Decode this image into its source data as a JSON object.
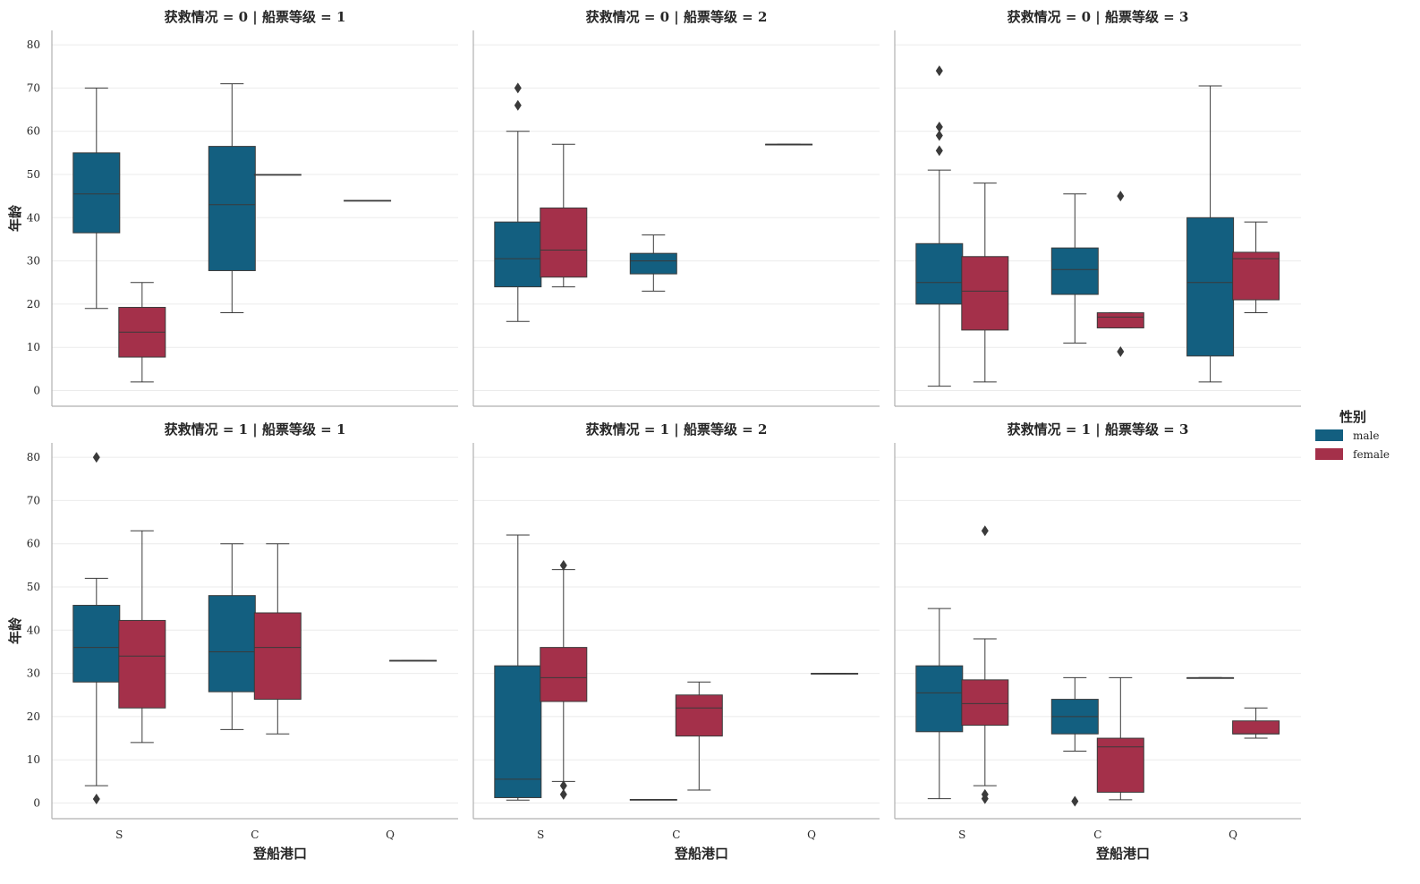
{
  "chart_data": {
    "type": "box",
    "xlabel": "登船港口",
    "ylabel": "年龄",
    "categories": [
      "S",
      "C",
      "Q"
    ],
    "yticks": [
      0,
      10,
      20,
      30,
      40,
      50,
      60,
      70,
      80
    ],
    "ylim": [
      -4,
      84
    ],
    "grid": true,
    "legend": {
      "title": "性别",
      "position": "right",
      "entries": [
        {
          "name": "male",
          "color": "#135f80"
        },
        {
          "name": "female",
          "color": "#a4304a"
        }
      ]
    },
    "colors": {
      "male": "#135f80",
      "female": "#a4304a"
    },
    "panels": [
      {
        "title": "获救情况 = 0 | 船票等级 = 1",
        "boxes": [
          {
            "cat": "S",
            "hue": "male",
            "q1": 36.5,
            "median": 45.5,
            "q3": 55,
            "lo": 19,
            "hi": 70,
            "fliers": []
          },
          {
            "cat": "S",
            "hue": "female",
            "q1": 7.75,
            "median": 13.5,
            "q3": 19.25,
            "lo": 2,
            "hi": 25,
            "fliers": []
          },
          {
            "cat": "C",
            "hue": "male",
            "q1": 27.75,
            "median": 43,
            "q3": 56.5,
            "lo": 18,
            "hi": 71,
            "fliers": []
          },
          {
            "cat": "C",
            "hue": "female",
            "q1": 50,
            "median": 50,
            "q3": 50,
            "lo": 50,
            "hi": 50,
            "fliers": []
          },
          {
            "cat": "Q",
            "hue": "male",
            "q1": 44,
            "median": 44,
            "q3": 44,
            "lo": 44,
            "hi": 44,
            "fliers": []
          }
        ]
      },
      {
        "title": "获救情况 = 0 | 船票等级 = 2",
        "boxes": [
          {
            "cat": "S",
            "hue": "male",
            "q1": 24,
            "median": 30.5,
            "q3": 39,
            "lo": 16,
            "hi": 60,
            "fliers": [
              66,
              70
            ]
          },
          {
            "cat": "S",
            "hue": "female",
            "q1": 26.25,
            "median": 32.5,
            "q3": 42.25,
            "lo": 24,
            "hi": 57,
            "fliers": []
          },
          {
            "cat": "C",
            "hue": "male",
            "q1": 27,
            "median": 30,
            "q3": 31.75,
            "lo": 23,
            "hi": 36,
            "fliers": []
          },
          {
            "cat": "Q",
            "hue": "male",
            "q1": 57,
            "median": 57,
            "q3": 57,
            "lo": 57,
            "hi": 57,
            "fliers": []
          }
        ]
      },
      {
        "title": "获救情况 = 0 | 船票等级 = 3",
        "boxes": [
          {
            "cat": "S",
            "hue": "male",
            "q1": 20,
            "median": 25,
            "q3": 34,
            "lo": 1,
            "hi": 51,
            "fliers": [
              55.5,
              59,
              61,
              74
            ]
          },
          {
            "cat": "S",
            "hue": "female",
            "q1": 14,
            "median": 23,
            "q3": 31,
            "lo": 2,
            "hi": 48,
            "fliers": []
          },
          {
            "cat": "C",
            "hue": "male",
            "q1": 22.25,
            "median": 28,
            "q3": 33,
            "lo": 11,
            "hi": 45.5,
            "fliers": []
          },
          {
            "cat": "C",
            "hue": "female",
            "q1": 14.5,
            "median": 17,
            "q3": 18,
            "lo": 14.5,
            "hi": 18,
            "fliers": [
              9,
              45
            ]
          },
          {
            "cat": "Q",
            "hue": "male",
            "q1": 8,
            "median": 25,
            "q3": 40,
            "lo": 2,
            "hi": 70.5,
            "fliers": []
          },
          {
            "cat": "Q",
            "hue": "female",
            "q1": 21,
            "median": 30.5,
            "q3": 32,
            "lo": 18,
            "hi": 39,
            "fliers": []
          }
        ]
      },
      {
        "title": "获救情况 = 1 | 船票等级 = 1",
        "boxes": [
          {
            "cat": "S",
            "hue": "male",
            "q1": 28,
            "median": 36,
            "q3": 45.75,
            "lo": 4,
            "hi": 52,
            "fliers": [
              0.92,
              80
            ]
          },
          {
            "cat": "S",
            "hue": "female",
            "q1": 22,
            "median": 34,
            "q3": 42.25,
            "lo": 14,
            "hi": 63,
            "fliers": []
          },
          {
            "cat": "C",
            "hue": "male",
            "q1": 25.75,
            "median": 35,
            "q3": 48,
            "lo": 17,
            "hi": 60,
            "fliers": []
          },
          {
            "cat": "C",
            "hue": "female",
            "q1": 24,
            "median": 36,
            "q3": 44,
            "lo": 16,
            "hi": 60,
            "fliers": []
          },
          {
            "cat": "Q",
            "hue": "female",
            "q1": 33,
            "median": 33,
            "q3": 33,
            "lo": 33,
            "hi": 33,
            "fliers": []
          }
        ]
      },
      {
        "title": "获救情况 = 1 | 船票等级 = 2",
        "boxes": [
          {
            "cat": "S",
            "hue": "male",
            "q1": 1.25,
            "median": 5.5,
            "q3": 31.75,
            "lo": 0.67,
            "hi": 62,
            "fliers": []
          },
          {
            "cat": "S",
            "hue": "female",
            "q1": 23.5,
            "median": 29,
            "q3": 36,
            "lo": 5,
            "hi": 54,
            "fliers": [
              2,
              4,
              55
            ]
          },
          {
            "cat": "C",
            "hue": "male",
            "q1": 0.83,
            "median": 0.83,
            "q3": 0.83,
            "lo": 0.83,
            "hi": 0.83,
            "fliers": []
          },
          {
            "cat": "C",
            "hue": "female",
            "q1": 15.5,
            "median": 22,
            "q3": 25,
            "lo": 3,
            "hi": 28,
            "fliers": []
          },
          {
            "cat": "Q",
            "hue": "female",
            "q1": 30,
            "median": 30,
            "q3": 30,
            "lo": 30,
            "hi": 30,
            "fliers": []
          }
        ]
      },
      {
        "title": "获救情况 = 1 | 船票等级 = 3",
        "boxes": [
          {
            "cat": "S",
            "hue": "male",
            "q1": 16.5,
            "median": 25.5,
            "q3": 31.75,
            "lo": 1,
            "hi": 45,
            "fliers": []
          },
          {
            "cat": "S",
            "hue": "female",
            "q1": 18,
            "median": 23,
            "q3": 28.5,
            "lo": 4,
            "hi": 38,
            "fliers": [
              1,
              2,
              63
            ]
          },
          {
            "cat": "C",
            "hue": "male",
            "q1": 16,
            "median": 20,
            "q3": 24,
            "lo": 12,
            "hi": 29,
            "fliers": [
              0.42
            ]
          },
          {
            "cat": "C",
            "hue": "female",
            "q1": 2.5,
            "median": 13,
            "q3": 15,
            "lo": 0.75,
            "hi": 29,
            "fliers": []
          },
          {
            "cat": "Q",
            "hue": "male",
            "q1": 29,
            "median": 29,
            "q3": 29,
            "lo": 29,
            "hi": 29,
            "fliers": []
          },
          {
            "cat": "Q",
            "hue": "female",
            "q1": 16,
            "median": 16,
            "q3": 19,
            "lo": 15,
            "hi": 22,
            "fliers": []
          }
        ]
      }
    ]
  }
}
